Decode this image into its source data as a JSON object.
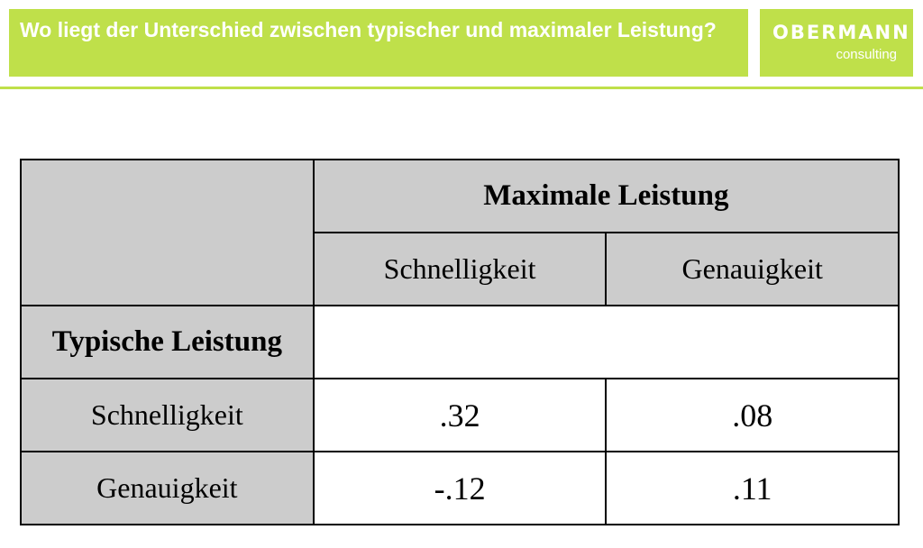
{
  "header": {
    "title": "Wo liegt der Unterschied zwischen typischer und maximaler Leistung?",
    "accent_color": "#bfe04a"
  },
  "logo": {
    "main": "OBERMANN",
    "sub": "consulting"
  },
  "table": {
    "top_header": "Maximale Leistung",
    "column_headers": [
      "Schnelligkeit",
      "Genauigkeit"
    ],
    "row_group_header": "Typische Leistung",
    "rows": [
      {
        "label": "Schnelligkeit",
        "values": [
          ".32",
          ".08"
        ]
      },
      {
        "label": "Genauigkeit",
        "values": [
          "-.12",
          ".11"
        ]
      }
    ]
  }
}
